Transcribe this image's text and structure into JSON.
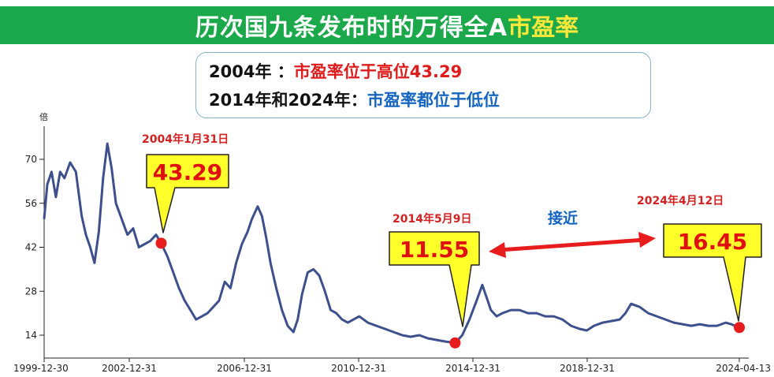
{
  "header": {
    "title_main": "历次国九条发布时的万得全A",
    "title_highlight": "市盈率"
  },
  "info_box": {
    "line1_label": "2004年 ：",
    "line1_value": "市盈率位于高位43.29",
    "line2_label": "2014年和2024年：",
    "line2_value": "市盈率都位于低位"
  },
  "colors": {
    "banner": "#1aa84a",
    "highlight": "#ffe83a",
    "line": "#3d4f8c",
    "marker": "#e81c1c",
    "callout_fill": "#ffff2a",
    "arrow": "#e81c1c",
    "blue_text": "#1565c0"
  },
  "chart_data": {
    "type": "line",
    "ylabel": "倍",
    "y_ticks": [
      14,
      28,
      42,
      56,
      70
    ],
    "ylim": [
      10,
      80
    ],
    "x_ticks": [
      "1999-12-30",
      "2002-12-31",
      "2006-12-31",
      "2010-12-31",
      "2014-12-31",
      "2018-12-31",
      "2024-04-13"
    ],
    "series": [
      {
        "x": [
          1999.99,
          2000.1,
          2000.25,
          2000.4,
          2000.55,
          2000.7,
          2000.9,
          2001.1,
          2001.3,
          2001.45,
          2001.6,
          2001.75,
          2001.9,
          2002.05,
          2002.2,
          2002.35,
          2002.5,
          2002.7,
          2002.9,
          2003.1,
          2003.3,
          2003.5,
          2003.7,
          2003.9,
          2004.08,
          2004.3,
          2004.5,
          2004.7,
          2004.9,
          2005.1,
          2005.3,
          2005.5,
          2005.7,
          2005.9,
          2006.1,
          2006.3,
          2006.5,
          2006.7,
          2006.9,
          2007.1,
          2007.25,
          2007.45,
          2007.6,
          2007.75,
          2007.9,
          2008.1,
          2008.3,
          2008.5,
          2008.7,
          2008.85,
          2009.0,
          2009.2,
          2009.4,
          2009.6,
          2009.8,
          2010.0,
          2010.2,
          2010.4,
          2010.6,
          2010.8,
          2011.0,
          2011.3,
          2011.6,
          2011.9,
          2012.2,
          2012.5,
          2012.8,
          2013.1,
          2013.4,
          2013.7,
          2014.0,
          2014.35,
          2014.6,
          2014.85,
          2015.1,
          2015.3,
          2015.45,
          2015.6,
          2015.8,
          2016.0,
          2016.3,
          2016.6,
          2016.9,
          2017.2,
          2017.5,
          2017.8,
          2018.1,
          2018.4,
          2018.7,
          2018.95,
          2019.2,
          2019.5,
          2019.8,
          2020.1,
          2020.3,
          2020.5,
          2020.8,
          2021.1,
          2021.4,
          2021.7,
          2022.0,
          2022.3,
          2022.6,
          2022.9,
          2023.2,
          2023.5,
          2023.8,
          2024.0,
          2024.28
        ],
        "values": [
          51,
          62,
          66,
          58,
          66,
          64,
          69,
          66,
          52,
          46,
          42,
          37,
          47,
          64,
          75,
          67,
          56,
          51,
          46,
          48,
          42,
          43,
          44,
          46,
          43.29,
          39,
          34,
          29,
          25,
          22,
          19,
          20,
          21,
          23,
          25,
          31,
          29,
          37,
          43,
          47,
          51,
          55,
          52,
          45,
          37,
          29,
          22,
          17,
          15,
          19,
          27,
          34,
          35,
          33,
          28,
          22,
          21,
          19,
          18,
          19,
          20,
          18,
          17,
          16,
          15,
          14,
          13.5,
          14,
          13,
          12.5,
          12,
          11.55,
          14,
          19,
          25,
          30,
          26,
          22,
          20,
          21,
          22,
          22,
          21,
          21,
          20,
          20,
          19,
          17,
          16,
          15.5,
          17,
          18,
          18.5,
          19,
          21,
          24,
          23,
          21,
          20,
          19,
          18,
          17.5,
          17,
          17.5,
          17,
          17,
          18,
          17.5,
          16.45
        ]
      }
    ],
    "annotations": [
      {
        "date": "2004年1月31日",
        "value": "43.29",
        "x": 2004.08,
        "y": 43.29
      },
      {
        "date": "2014年5月9日",
        "value": "11.55",
        "x": 2014.35,
        "y": 11.55
      },
      {
        "date": "2024年4月12日",
        "value": "16.45",
        "x": 2024.28,
        "y": 16.45
      }
    ],
    "arrow_label": "接近",
    "grid": false
  }
}
